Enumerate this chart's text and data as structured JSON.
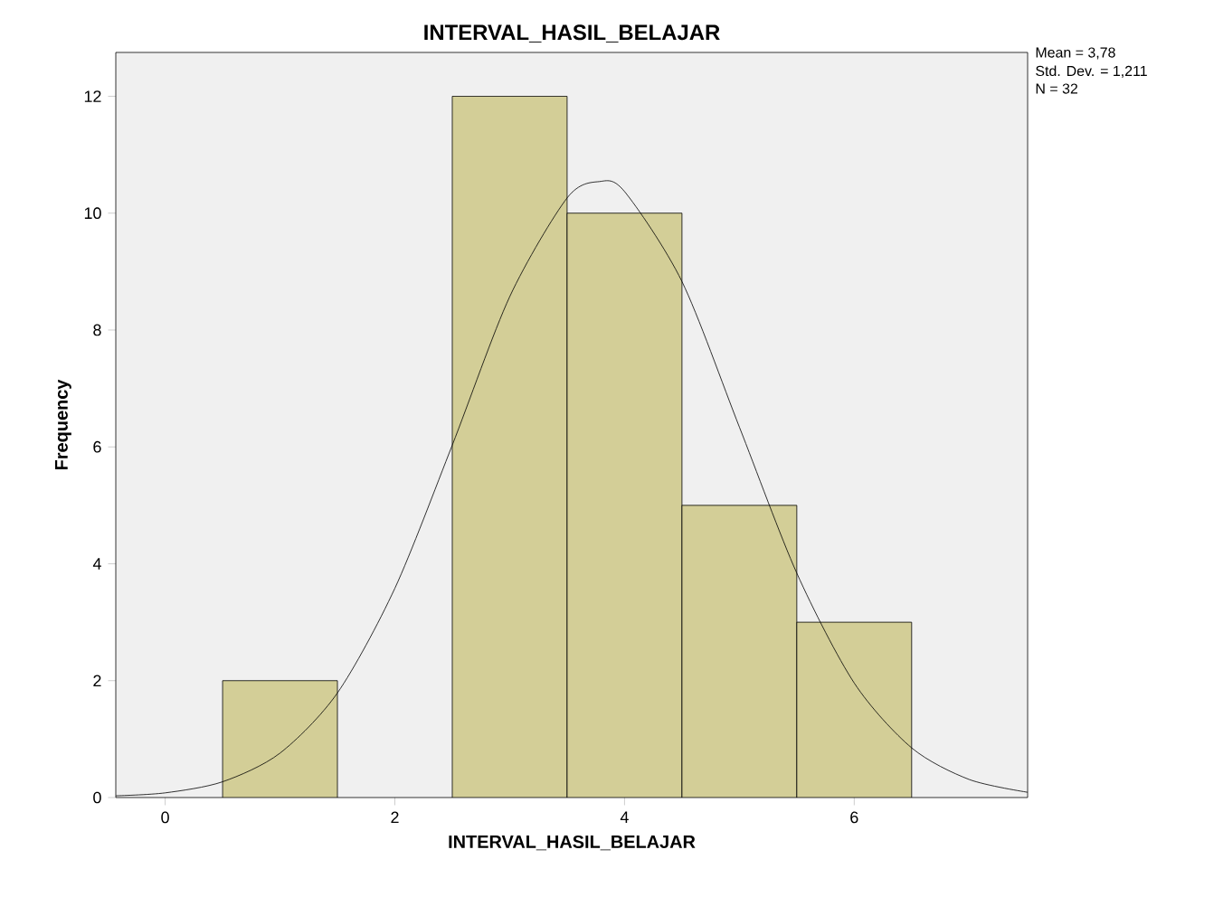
{
  "chart_data": {
    "type": "histogram",
    "title": "INTERVAL_HASIL_BELAJAR",
    "xlabel": "INTERVAL_HASIL_BELAJAR",
    "ylabel": "Frequency",
    "xlim": [
      -0.43,
      7.51
    ],
    "ylim": [
      0,
      12.75
    ],
    "xticks": [
      0,
      2,
      4,
      6
    ],
    "yticks": [
      0,
      2,
      4,
      6,
      8,
      10,
      12
    ],
    "annotations": [
      "Mean = 3,78",
      "Std. Dev. = 1,211",
      "N = 32"
    ],
    "series": [
      {
        "bins": [
          0.5,
          1.5,
          2.5,
          3.5,
          4.5,
          5.5,
          6.5
        ],
        "values": [
          2,
          0,
          12,
          10,
          5,
          3
        ],
        "color": "#d3ce97"
      },
      {
        "type": "line",
        "marker": "none",
        "color": "#000000",
        "x": [
          -0.43,
          0,
          0.5,
          1,
          1.5,
          2,
          2.5,
          3,
          3.5,
          3.78,
          4,
          4.5,
          5,
          5.5,
          6,
          6.5,
          7,
          7.51
        ],
        "values": [
          0.03,
          0.08,
          0.27,
          0.76,
          1.79,
          3.58,
          6.03,
          8.57,
          10.26,
          10.54,
          10.37,
          8.83,
          6.34,
          3.84,
          1.96,
          0.85,
          0.31,
          0.09
        ]
      }
    ]
  }
}
